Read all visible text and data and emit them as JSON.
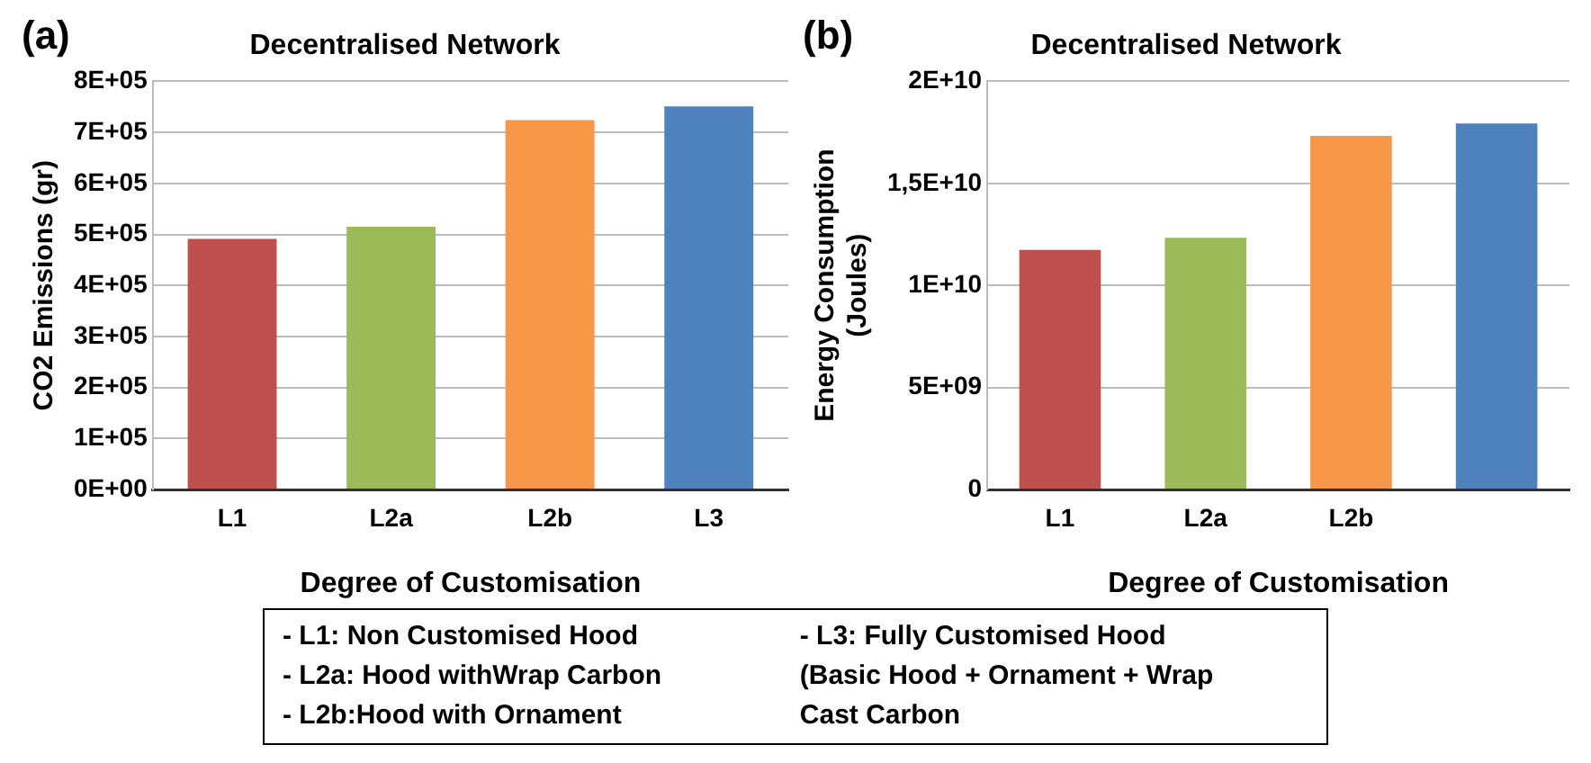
{
  "chart_data": [
    {
      "type": "bar",
      "title": "Decentralised Network",
      "xlabel": "Degree of Customisation",
      "ylabel": "CO2 Emissions (gr)",
      "annotations": [
        "(a)"
      ],
      "categories": [
        "L1",
        "L2a",
        "L2b",
        "L3"
      ],
      "values": [
        491000,
        515000,
        724000,
        751000
      ],
      "colors": [
        "#c0504d",
        "#9bbb59",
        "#f79646",
        "#4f81bd"
      ],
      "ylim": [
        0,
        800000
      ],
      "yticks": [
        {
          "value": 0,
          "label": "0E+00"
        },
        {
          "value": 100000,
          "label": "1E+05"
        },
        {
          "value": 200000,
          "label": "2E+05"
        },
        {
          "value": 300000,
          "label": "3E+05"
        },
        {
          "value": 400000,
          "label": "4E+05"
        },
        {
          "value": 500000,
          "label": "5E+05"
        },
        {
          "value": 600000,
          "label": "6E+05"
        },
        {
          "value": 700000,
          "label": "7E+05"
        },
        {
          "value": 800000,
          "label": "8E+05"
        }
      ],
      "grid": "y",
      "legend": false
    },
    {
      "type": "bar",
      "title": "Decentralised Network",
      "xlabel": "Degree of Customisation",
      "ylabel": "Energy Consumption (Joules)",
      "annotations": [
        "(b)"
      ],
      "categories": [
        "L1",
        "L2a",
        "L2b",
        null
      ],
      "values": [
        11740000000,
        12340000000,
        17330000000,
        17930000000
      ],
      "colors": [
        "#c0504d",
        "#9bbb59",
        "#f79646",
        "#4f81bd"
      ],
      "ylim": [
        0,
        20000000000
      ],
      "yticks": [
        0,
        {
          "value": 5000000000,
          "label": "5E+09"
        },
        {
          "value": 10000000000,
          "label": "1E+10"
        },
        {
          "value": 15000000000,
          "label": "1,5E+10"
        },
        {
          "value": 20000000000,
          "label": "2E+10"
        }
      ],
      "grid": "y",
      "legend": false
    },
    {
      "type": "other",
      "annotations": [
        "- L1: Non Customised Hood",
        "- L2a: Hood withWrap Carbon",
        "- L2b:Hood with Ornament",
        "- L3: Fully Customised Hood",
        "(Basic Hood + Ornament + Wrap",
        "Cast Carbon"
      ]
    }
  ]
}
